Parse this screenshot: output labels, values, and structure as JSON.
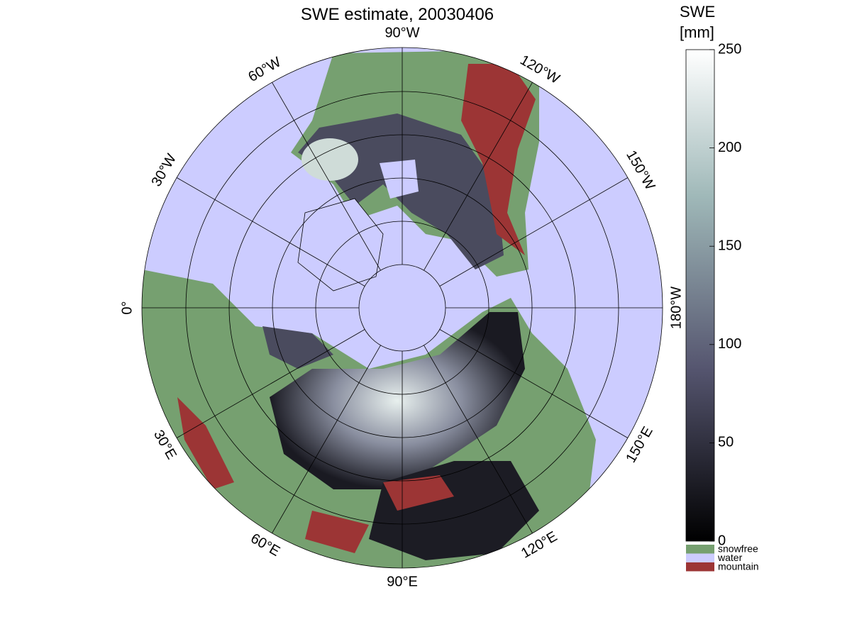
{
  "title": "SWE estimate, 20030406",
  "colorbar": {
    "label": [
      "SWE",
      "[mm]"
    ],
    "lim": [
      0,
      250
    ],
    "ticks": [
      0,
      50,
      100,
      150,
      200,
      250
    ]
  },
  "legend": [
    {
      "label": "snowfree",
      "color": "#76a070"
    },
    {
      "label": "water",
      "color": "#ccccff"
    },
    {
      "label": "mountain",
      "color": "#9c3535"
    }
  ],
  "longitude_labels": [
    "0°",
    "30°W",
    "60°W",
    "90°W",
    "120°W",
    "150°W",
    "180°W",
    "150°E",
    "120°E",
    "90°E",
    "60°E",
    "30°E"
  ]
}
